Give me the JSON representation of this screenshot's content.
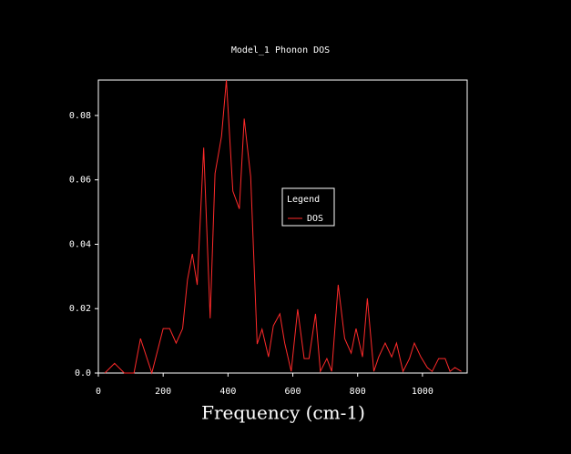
{
  "chart_data": {
    "type": "line",
    "title": "Model_1 Phonon DOS",
    "xlabel": "Frequency (cm-1)",
    "legend_title": "Legend",
    "x": [
      20,
      50,
      80,
      110,
      130,
      165,
      200,
      220,
      240,
      260,
      275,
      290,
      305,
      325,
      345,
      360,
      380,
      395,
      415,
      435,
      450,
      470,
      490,
      505,
      525,
      540,
      560,
      575,
      595,
      615,
      635,
      650,
      670,
      685,
      705,
      720,
      740,
      760,
      780,
      795,
      815,
      830,
      850,
      865,
      885,
      905,
      920,
      940,
      960,
      975,
      995,
      1015,
      1030,
      1050,
      1070,
      1085,
      1100,
      1120
    ],
    "series": [
      {
        "name": "DOS",
        "color": "#ff2a2a",
        "values": [
          0,
          0.003,
          0,
          0,
          0.0107,
          0,
          0.0138,
          0.0138,
          0.0093,
          0.0138,
          0.029,
          0.037,
          0.0274,
          0.07,
          0.017,
          0.062,
          0.0735,
          0.091,
          0.0565,
          0.051,
          0.079,
          0.061,
          0.009,
          0.0136,
          0.005,
          0.0147,
          0.0184,
          0.0093,
          0.0005,
          0.0198,
          0.0045,
          0.0045,
          0.0184,
          0.0005,
          0.0045,
          0.0005,
          0.0274,
          0.0107,
          0.0062,
          0.0138,
          0.005,
          0.0232,
          0.0005,
          0.005,
          0.0093,
          0.005,
          0.0093,
          0.0005,
          0.0045,
          0.0093,
          0.005,
          0.0017,
          0.0005,
          0.0045,
          0.0045,
          0.0005,
          0.0017,
          0.0005
        ]
      }
    ],
    "xlim": [
      0,
      1138
    ],
    "xticks": [
      0,
      200,
      400,
      600,
      800,
      1000
    ],
    "ylim": [
      0,
      0.091
    ],
    "yticks": [
      {
        "value": 0,
        "label": "0.0"
      },
      0.02,
      0.04,
      0.06,
      0.08
    ],
    "legend": "upper right"
  }
}
